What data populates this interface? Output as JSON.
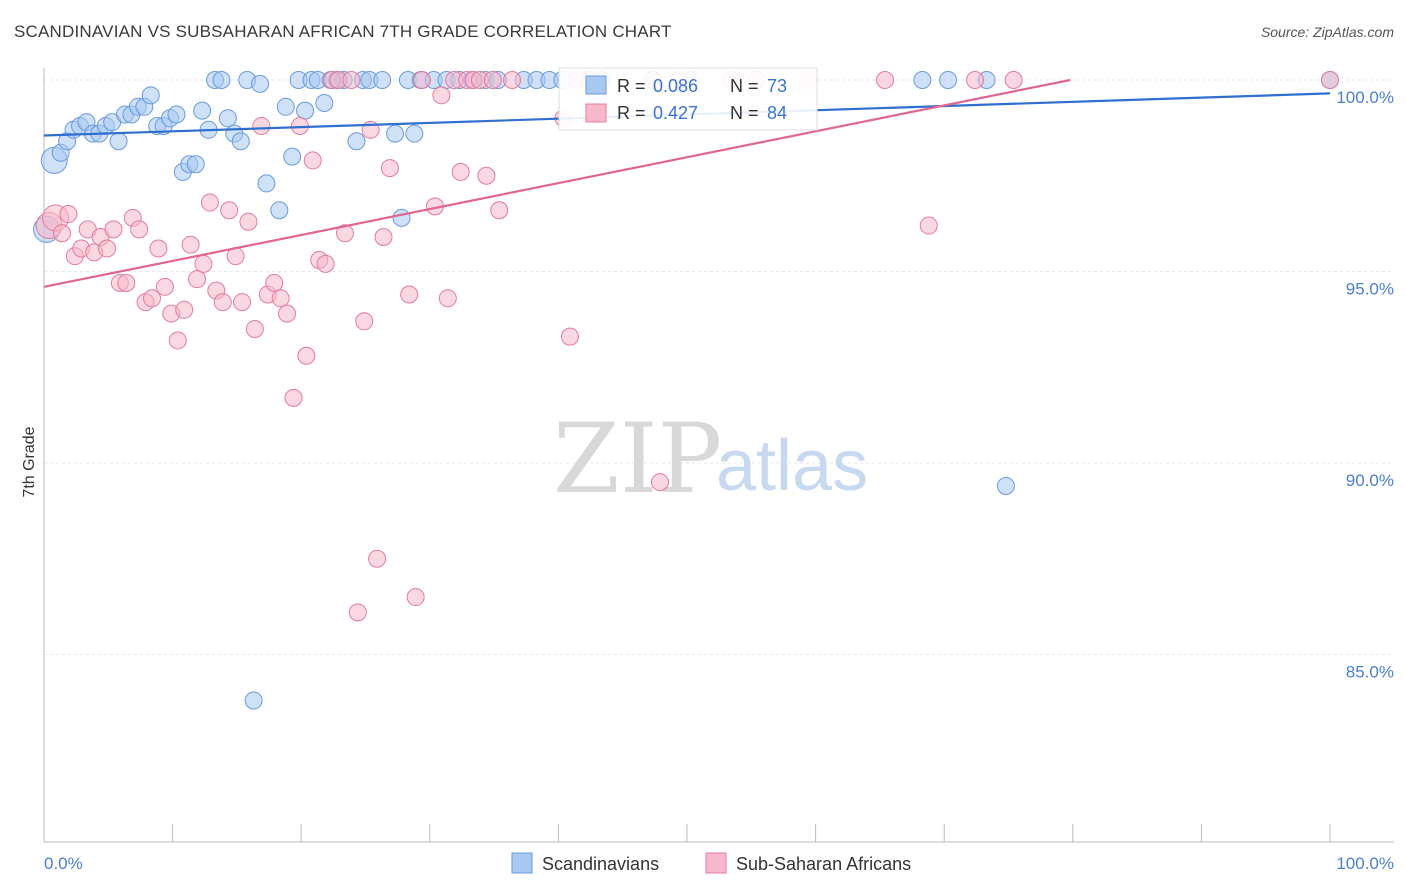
{
  "title": "SCANDINAVIAN VS SUBSAHARAN AFRICAN 7TH GRADE CORRELATION CHART",
  "source": "Source: ZipAtlas.com",
  "watermark": {
    "part1": "ZIP",
    "part2": "atlas"
  },
  "legend_box": {
    "rows": [
      {
        "r_label": "R =",
        "r_value": "0.086",
        "n_label": "N =",
        "n_value": "73"
      },
      {
        "r_label": "R =",
        "r_value": "0.427",
        "n_label": "N =",
        "n_value": "84"
      }
    ]
  },
  "chart_data": {
    "type": "scatter",
    "title": "SCANDINAVIAN VS SUBSAHARAN AFRICAN 7TH GRADE CORRELATION CHART",
    "xlabel": "",
    "ylabel": "7th Grade",
    "xlim": [
      0,
      100
    ],
    "ylim": [
      80.5,
      100.8
    ],
    "x_tick_labels": [
      "0.0%",
      "100.0%"
    ],
    "y_ticks": [
      100,
      95,
      90,
      85
    ],
    "y_tick_labels": [
      "100.0%",
      "95.0%",
      "90.0%",
      "85.0%"
    ],
    "grid": true,
    "legend_position": "bottom",
    "series": [
      {
        "name": "Scandinavians",
        "color": "#a8c8f0",
        "stroke": "#6a9ae0",
        "line_color": "#2f6fcf",
        "R": 0.086,
        "N": 73,
        "trend": {
          "x0": 0,
          "y0": 98.55,
          "x1": 100,
          "y1": 99.65
        },
        "points": [
          [
            0.2,
            96.1
          ],
          [
            0.8,
            97.9
          ],
          [
            1.3,
            98.1
          ],
          [
            1.8,
            98.4
          ],
          [
            2.3,
            98.7
          ],
          [
            2.8,
            98.8
          ],
          [
            3.3,
            98.9
          ],
          [
            3.8,
            98.6
          ],
          [
            4.3,
            98.6
          ],
          [
            4.8,
            98.8
          ],
          [
            5.3,
            98.9
          ],
          [
            5.8,
            98.4
          ],
          [
            6.3,
            99.1
          ],
          [
            6.8,
            99.1
          ],
          [
            7.3,
            99.3
          ],
          [
            7.8,
            99.3
          ],
          [
            8.3,
            99.6
          ],
          [
            8.8,
            98.8
          ],
          [
            9.3,
            98.8
          ],
          [
            9.8,
            99.0
          ],
          [
            10.3,
            99.1
          ],
          [
            10.8,
            97.6
          ],
          [
            11.3,
            97.8
          ],
          [
            11.8,
            97.8
          ],
          [
            12.3,
            99.2
          ],
          [
            12.8,
            98.7
          ],
          [
            13.3,
            100.0
          ],
          [
            13.8,
            100.0
          ],
          [
            14.3,
            99.0
          ],
          [
            14.8,
            98.6
          ],
          [
            15.3,
            98.4
          ],
          [
            15.8,
            100.0
          ],
          [
            16.3,
            83.8
          ],
          [
            16.8,
            99.9
          ],
          [
            17.3,
            97.3
          ],
          [
            18.3,
            96.6
          ],
          [
            18.8,
            99.3
          ],
          [
            19.3,
            98.0
          ],
          [
            19.8,
            100.0
          ],
          [
            20.3,
            99.2
          ],
          [
            20.8,
            100.0
          ],
          [
            21.3,
            100.0
          ],
          [
            21.8,
            99.4
          ],
          [
            22.3,
            100.0
          ],
          [
            22.8,
            100.0
          ],
          [
            23.3,
            100.0
          ],
          [
            24.3,
            98.4
          ],
          [
            24.8,
            100.0
          ],
          [
            25.3,
            100.0
          ],
          [
            26.3,
            100.0
          ],
          [
            27.3,
            98.6
          ],
          [
            27.8,
            96.4
          ],
          [
            28.3,
            100.0
          ],
          [
            28.8,
            98.6
          ],
          [
            29.3,
            100.0
          ],
          [
            30.3,
            100.0
          ],
          [
            31.3,
            100.0
          ],
          [
            32.3,
            100.0
          ],
          [
            33.3,
            100.0
          ],
          [
            34.3,
            100.0
          ],
          [
            35.3,
            100.0
          ],
          [
            37.3,
            100.0
          ],
          [
            38.3,
            100.0
          ],
          [
            39.3,
            100.0
          ],
          [
            40.3,
            100.0
          ],
          [
            43.3,
            100.0
          ],
          [
            47.3,
            100.0
          ],
          [
            50.3,
            100.0
          ],
          [
            68.3,
            100.0
          ],
          [
            70.3,
            100.0
          ],
          [
            73.3,
            100.0
          ],
          [
            74.8,
            89.4
          ],
          [
            100.0,
            100.0
          ]
        ]
      },
      {
        "name": "Sub-Saharan Africans",
        "color": "#f6b8ca",
        "stroke": "#e47b9c",
        "line_color": "#e06690",
        "R": 0.427,
        "N": 84,
        "trend": {
          "x0": 0,
          "y0": 94.6,
          "x1": 79.8,
          "y1": 100.0
        },
        "points": [
          [
            0.4,
            96.2
          ],
          [
            0.9,
            96.4
          ],
          [
            1.4,
            96.0
          ],
          [
            1.9,
            96.5
          ],
          [
            2.4,
            95.4
          ],
          [
            2.9,
            95.6
          ],
          [
            3.4,
            96.1
          ],
          [
            3.9,
            95.5
          ],
          [
            4.4,
            95.9
          ],
          [
            4.9,
            95.6
          ],
          [
            5.4,
            96.1
          ],
          [
            5.9,
            94.7
          ],
          [
            6.4,
            94.7
          ],
          [
            6.9,
            96.4
          ],
          [
            7.4,
            96.1
          ],
          [
            7.9,
            94.2
          ],
          [
            8.4,
            94.3
          ],
          [
            8.9,
            95.6
          ],
          [
            9.4,
            94.6
          ],
          [
            9.9,
            93.9
          ],
          [
            10.4,
            93.2
          ],
          [
            10.9,
            94.0
          ],
          [
            11.4,
            95.7
          ],
          [
            11.9,
            94.8
          ],
          [
            12.4,
            95.2
          ],
          [
            12.9,
            96.8
          ],
          [
            13.4,
            94.5
          ],
          [
            13.9,
            94.2
          ],
          [
            14.4,
            96.6
          ],
          [
            14.9,
            95.4
          ],
          [
            15.4,
            94.2
          ],
          [
            15.9,
            96.3
          ],
          [
            16.4,
            93.5
          ],
          [
            16.9,
            98.8
          ],
          [
            17.4,
            94.4
          ],
          [
            17.9,
            94.7
          ],
          [
            18.4,
            94.3
          ],
          [
            18.9,
            93.9
          ],
          [
            19.4,
            91.7
          ],
          [
            19.9,
            98.8
          ],
          [
            20.4,
            92.8
          ],
          [
            20.9,
            97.9
          ],
          [
            21.4,
            95.3
          ],
          [
            21.9,
            95.2
          ],
          [
            22.4,
            100.0
          ],
          [
            22.9,
            100.0
          ],
          [
            23.4,
            96.0
          ],
          [
            23.9,
            100.0
          ],
          [
            24.4,
            86.1
          ],
          [
            24.9,
            93.7
          ],
          [
            25.4,
            98.7
          ],
          [
            25.9,
            87.5
          ],
          [
            26.4,
            95.9
          ],
          [
            26.9,
            97.7
          ],
          [
            28.4,
            94.4
          ],
          [
            28.9,
            86.5
          ],
          [
            29.4,
            100.0
          ],
          [
            30.4,
            96.7
          ],
          [
            30.9,
            99.6
          ],
          [
            31.4,
            94.3
          ],
          [
            31.9,
            100.0
          ],
          [
            32.4,
            97.6
          ],
          [
            32.9,
            100.0
          ],
          [
            33.4,
            100.0
          ],
          [
            33.9,
            100.0
          ],
          [
            34.4,
            97.5
          ],
          [
            34.9,
            100.0
          ],
          [
            35.4,
            96.6
          ],
          [
            36.4,
            100.0
          ],
          [
            40.4,
            99.0
          ],
          [
            40.9,
            93.3
          ],
          [
            41.4,
            100.0
          ],
          [
            42.4,
            100.0
          ],
          [
            47.4,
            100.0
          ],
          [
            47.9,
            89.5
          ],
          [
            49.4,
            100.0
          ],
          [
            53.4,
            100.0
          ],
          [
            55.4,
            100.0
          ],
          [
            59.4,
            100.0
          ],
          [
            65.4,
            100.0
          ],
          [
            68.8,
            96.2
          ],
          [
            72.4,
            100.0
          ],
          [
            75.4,
            100.0
          ],
          [
            100.0,
            100.0
          ]
        ]
      }
    ]
  }
}
